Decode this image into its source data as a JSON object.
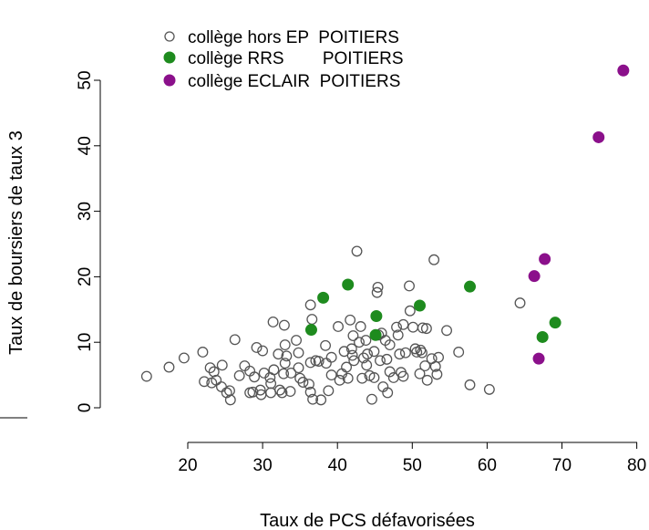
{
  "chart_data": {
    "type": "scatter",
    "title": "",
    "xlabel": "Taux de PCS défavorisées",
    "ylabel": "Taux de boursiers de taux 3",
    "xlim": [
      13,
      80
    ],
    "ylim": [
      -1,
      53
    ],
    "x_ticks": [
      20,
      30,
      40,
      50,
      60,
      70,
      80
    ],
    "y_ticks": [
      0,
      10,
      20,
      30,
      40,
      50
    ],
    "grid": false,
    "legend_position": "top-left",
    "series": [
      {
        "name": "collège hors EP  POITIERS",
        "marker": "open-circle",
        "color": "#555555",
        "points": [
          [
            14.5,
            4.8
          ],
          [
            17.5,
            6.2
          ],
          [
            19.5,
            7.6
          ],
          [
            22,
            8.5
          ],
          [
            22.2,
            4
          ],
          [
            23,
            6.1
          ],
          [
            23.5,
            5.5
          ],
          [
            23.2,
            3.8
          ],
          [
            23.8,
            4.2
          ],
          [
            24.5,
            3.2
          ],
          [
            24.6,
            6.5
          ],
          [
            25.2,
            2.3
          ],
          [
            25.7,
            1.2
          ],
          [
            25.6,
            2.6
          ],
          [
            26.3,
            10.4
          ],
          [
            26.9,
            4.9
          ],
          [
            27.6,
            6.4
          ],
          [
            28.3,
            5.6
          ],
          [
            28.3,
            2.3
          ],
          [
            28.7,
            2.4
          ],
          [
            28.9,
            4.7
          ],
          [
            29.2,
            9.2
          ],
          [
            29.7,
            2.7
          ],
          [
            29.8,
            2
          ],
          [
            30,
            8.7
          ],
          [
            30.2,
            5.3
          ],
          [
            31,
            4.6
          ],
          [
            31.1,
            3.7
          ],
          [
            31.1,
            2.3
          ],
          [
            31.4,
            13.1
          ],
          [
            31.5,
            5.8
          ],
          [
            32.1,
            8.2
          ],
          [
            32.3,
            2.7
          ],
          [
            32.6,
            2.3
          ],
          [
            32.9,
            12.6
          ],
          [
            32.8,
            5.2
          ],
          [
            33,
            9.6
          ],
          [
            33,
            6.8
          ],
          [
            33.2,
            7.9
          ],
          [
            33.7,
            2.5
          ],
          [
            33.8,
            5.3
          ],
          [
            34.5,
            10.3
          ],
          [
            34.8,
            8.4
          ],
          [
            34.8,
            6.1
          ],
          [
            35,
            4.5
          ],
          [
            35.4,
            3.9
          ],
          [
            36.2,
            3.6
          ],
          [
            36.4,
            6.9
          ],
          [
            36.4,
            15.7
          ],
          [
            36.6,
            13.5
          ],
          [
            36.4,
            2.4
          ],
          [
            36.7,
            1.3
          ],
          [
            37.1,
            7.2
          ],
          [
            37.5,
            7.1
          ],
          [
            37.8,
            1.2
          ],
          [
            38.4,
            9.5
          ],
          [
            38.5,
            6.8
          ],
          [
            38.8,
            2.6
          ],
          [
            39.2,
            7.7
          ],
          [
            39.2,
            5
          ],
          [
            40.1,
            12.4
          ],
          [
            40.3,
            4.2
          ],
          [
            40.6,
            5.2
          ],
          [
            40.9,
            8.6
          ],
          [
            41.2,
            6.2
          ],
          [
            41.4,
            4.5
          ],
          [
            41.7,
            13.4
          ],
          [
            41.9,
            9
          ],
          [
            42,
            8
          ],
          [
            42.1,
            11
          ],
          [
            42.2,
            7.2
          ],
          [
            42.6,
            23.9
          ],
          [
            42.9,
            10
          ],
          [
            43.1,
            12.4
          ],
          [
            43.3,
            4.5
          ],
          [
            43.5,
            7.6
          ],
          [
            43.8,
            10.3
          ],
          [
            43.9,
            6.5
          ],
          [
            44,
            8.2
          ],
          [
            44.3,
            4.9
          ],
          [
            44.6,
            1.3
          ],
          [
            44.9,
            4.6
          ],
          [
            44.9,
            8.6
          ],
          [
            45.3,
            17.6
          ],
          [
            45.4,
            18.4
          ],
          [
            45.5,
            11.1
          ],
          [
            45.7,
            7.2
          ],
          [
            45.9,
            11.4
          ],
          [
            46.1,
            3.2
          ],
          [
            46.4,
            10.3
          ],
          [
            46.6,
            7.4
          ],
          [
            46.7,
            2.3
          ],
          [
            47,
            5.5
          ],
          [
            47,
            9.6
          ],
          [
            47.5,
            4.6
          ],
          [
            47.9,
            12.3
          ],
          [
            48.1,
            11.1
          ],
          [
            48.3,
            8.2
          ],
          [
            48.5,
            5.4
          ],
          [
            48.8,
            4.8
          ],
          [
            48.8,
            12.7
          ],
          [
            49.1,
            8.4
          ],
          [
            49.6,
            18.6
          ],
          [
            49.7,
            14.8
          ],
          [
            50.1,
            12.3
          ],
          [
            50.4,
            9
          ],
          [
            50.6,
            8.5
          ],
          [
            51,
            5.2
          ],
          [
            51.1,
            8.8
          ],
          [
            51.3,
            8.4
          ],
          [
            51.4,
            12.2
          ],
          [
            51.7,
            6.4
          ],
          [
            51.9,
            12.1
          ],
          [
            52,
            4.2
          ],
          [
            52.6,
            7.5
          ],
          [
            52.9,
            22.6
          ],
          [
            53.1,
            6.3
          ],
          [
            53.3,
            5.1
          ],
          [
            53.5,
            7.7
          ],
          [
            54.6,
            11.8
          ],
          [
            56.2,
            8.5
          ],
          [
            57.7,
            3.5
          ],
          [
            60.3,
            2.8
          ],
          [
            64.4,
            16
          ]
        ]
      },
      {
        "name": "collège RRS        POITIERS",
        "marker": "filled-circle",
        "color": "#1e8b1e",
        "points": [
          [
            36.5,
            11.9
          ],
          [
            38.1,
            16.8
          ],
          [
            41.4,
            18.8
          ],
          [
            45.1,
            11.1
          ],
          [
            45.2,
            14
          ],
          [
            51,
            15.6
          ],
          [
            57.7,
            18.5
          ],
          [
            67.4,
            10.8
          ],
          [
            69.1,
            13
          ]
        ]
      },
      {
        "name": "collège ECLAIR  POITIERS",
        "marker": "filled-circle",
        "color": "#8b108b",
        "points": [
          [
            66.3,
            20.1
          ],
          [
            66.9,
            7.5
          ],
          [
            67.7,
            22.7
          ],
          [
            74.9,
            41.3
          ],
          [
            78.2,
            51.5
          ]
        ]
      }
    ]
  }
}
